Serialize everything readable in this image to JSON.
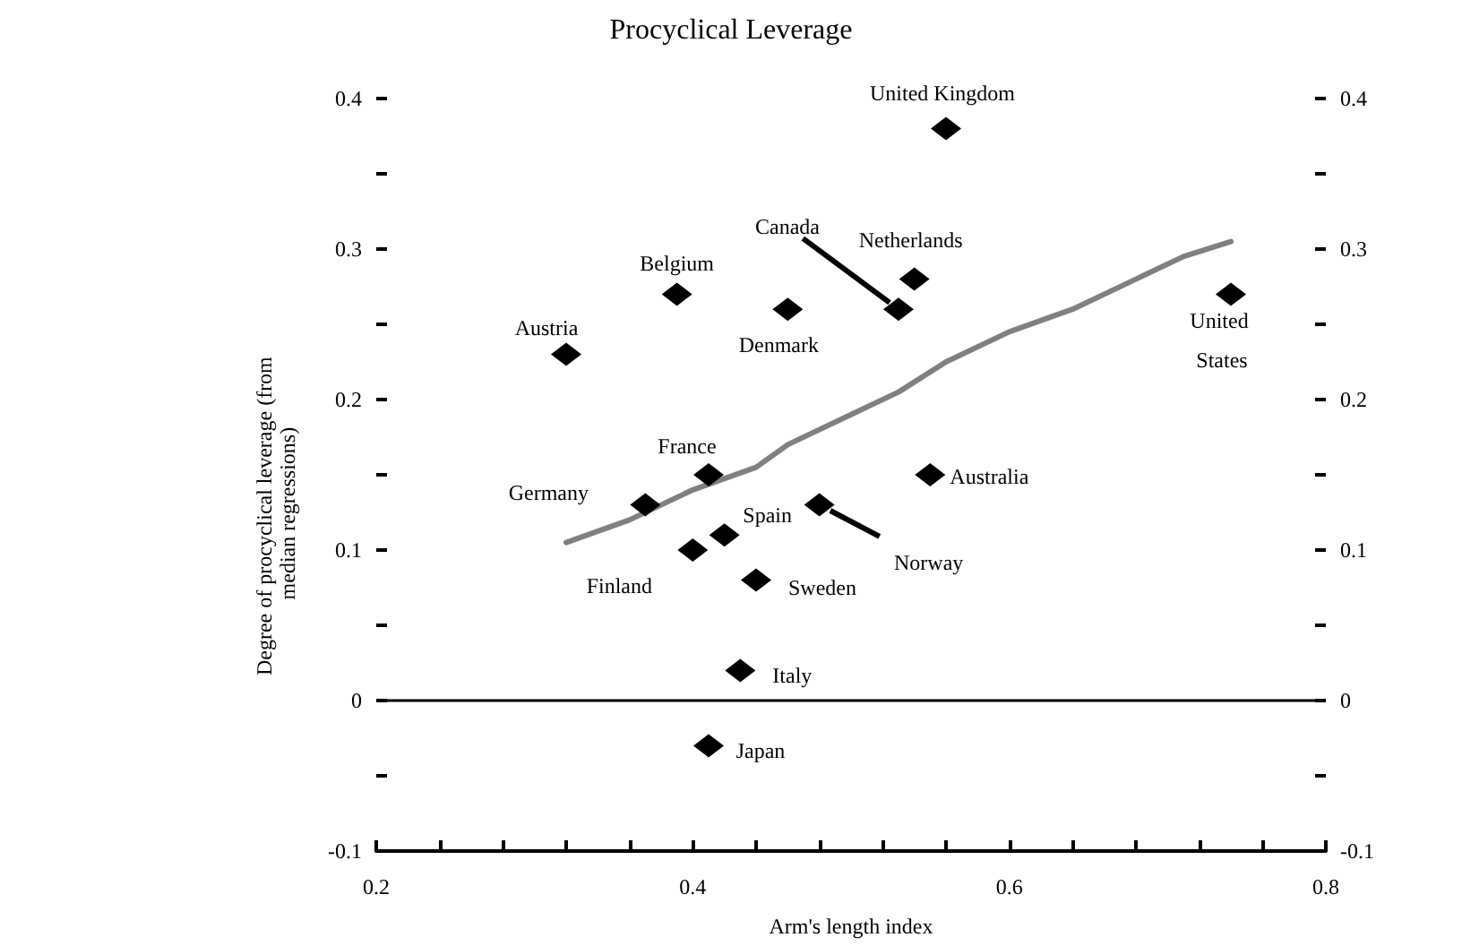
{
  "chart_data": {
    "type": "scatter",
    "title": "Procyclical Leverage",
    "xlabel": "Arm's length index",
    "ylabel": "Degree of procyclical leverage (from median regressions)",
    "xlim": [
      0.2,
      0.8
    ],
    "xticks": [
      0.2,
      {
        "value": 0.24,
        "label": null
      },
      {
        "value": 0.28,
        "label": null
      },
      {
        "value": 0.32,
        "label": null
      },
      {
        "value": 0.36,
        "label": null
      },
      0.4,
      {
        "value": 0.44,
        "label": null
      },
      {
        "value": 0.48,
        "label": null
      },
      {
        "value": 0.52,
        "label": null
      },
      {
        "value": 0.56,
        "label": null
      },
      0.6,
      {
        "value": 0.64,
        "label": null
      },
      {
        "value": 0.68,
        "label": null
      },
      {
        "value": 0.72,
        "label": null
      },
      {
        "value": 0.76,
        "label": null
      },
      0.8
    ],
    "ylim": [
      -0.1,
      0.4
    ],
    "yticks": [
      -0.1,
      {
        "value": -0.05,
        "label": null
      },
      0,
      {
        "value": 0.05,
        "label": null
      },
      0.1,
      {
        "value": 0.15,
        "label": null
      },
      0.2,
      {
        "value": 0.25,
        "label": null
      },
      0.3,
      {
        "value": 0.35,
        "label": null
      },
      0.4
    ],
    "y2lim": [
      -0.1,
      0.4
    ],
    "y2ticks": [
      -0.1,
      {
        "value": -0.05,
        "label": null
      },
      0,
      {
        "value": 0.05,
        "label": null
      },
      0.1,
      {
        "value": 0.15,
        "label": null
      },
      0.2,
      {
        "value": 0.25,
        "label": null
      },
      0.3,
      {
        "value": 0.35,
        "label": null
      },
      0.4
    ],
    "grid": false,
    "legend": false,
    "marker": "diamond",
    "series": [
      {
        "color": "#000000",
        "x": [
          0.32,
          0.39,
          0.46,
          0.53,
          0.54,
          0.56,
          0.74,
          0.41,
          0.37,
          0.42,
          0.4,
          0.44,
          0.43,
          0.41,
          0.48,
          0.55
        ],
        "values": [
          0.23,
          0.27,
          0.26,
          0.26,
          0.28,
          0.38,
          0.27,
          0.15,
          0.13,
          0.11,
          0.1,
          0.08,
          0.02,
          -0.03,
          0.13,
          0.15
        ]
      },
      {
        "type": "line",
        "color": "#808080",
        "line_style": "solid",
        "marker": "none",
        "x": [
          0.32,
          0.36,
          0.4,
          0.44,
          0.46,
          0.5,
          0.53,
          0.56,
          0.6,
          0.64,
          0.68,
          0.71,
          0.74
        ],
        "values": [
          0.105,
          0.12,
          0.14,
          0.155,
          0.17,
          0.19,
          0.205,
          0.225,
          0.245,
          0.26,
          0.28,
          0.295,
          0.305
        ]
      }
    ],
    "ref_lines": [
      {
        "axis": "y",
        "value": 0,
        "color": "#000000",
        "line_style": "solid"
      }
    ],
    "annotations": [
      {
        "text": "Austria",
        "x": 0.32,
        "y": 0.23
      },
      {
        "text": "Belgium",
        "x": 0.39,
        "y": 0.27
      },
      {
        "text": "Denmark",
        "x": 0.46,
        "y": 0.26
      },
      {
        "text": "Canada",
        "x": 0.53,
        "y": 0.26
      },
      {
        "text": "Netherlands",
        "x": 0.54,
        "y": 0.28
      },
      {
        "text": "United Kingdom",
        "x": 0.56,
        "y": 0.38
      },
      {
        "text": "United States",
        "x": 0.74,
        "y": 0.27
      },
      {
        "text": "France",
        "x": 0.41,
        "y": 0.15
      },
      {
        "text": "Germany",
        "x": 0.37,
        "y": 0.13
      },
      {
        "text": "Spain",
        "x": 0.42,
        "y": 0.11
      },
      {
        "text": "Finland",
        "x": 0.4,
        "y": 0.1
      },
      {
        "text": "Sweden",
        "x": 0.44,
        "y": 0.08
      },
      {
        "text": "Italy",
        "x": 0.43,
        "y": 0.02
      },
      {
        "text": "Japan",
        "x": 0.41,
        "y": -0.03
      },
      {
        "text": "Norway",
        "x": 0.48,
        "y": 0.13
      },
      {
        "text": "Australia",
        "x": 0.55,
        "y": 0.15
      }
    ]
  }
}
